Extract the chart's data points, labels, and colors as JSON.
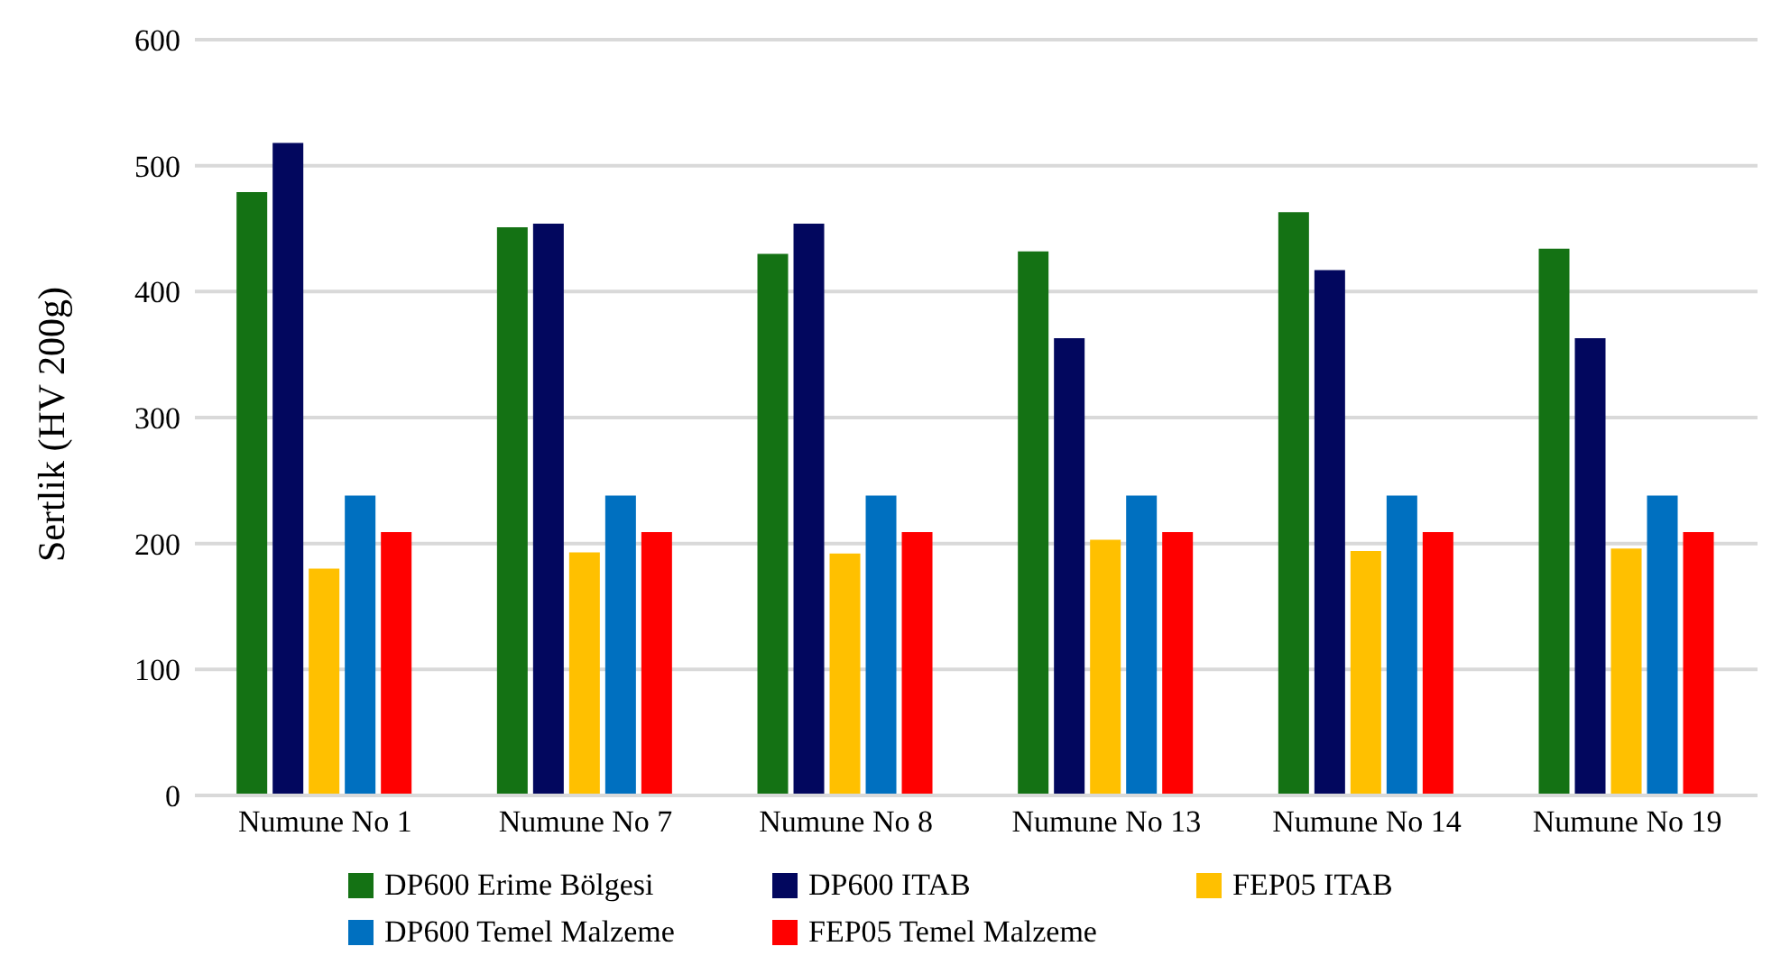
{
  "chart_data": {
    "type": "bar",
    "ylabel": "Sertlik (HV 200g)",
    "categories": [
      "Numune No 1",
      "Numune No 7",
      "Numune No 8",
      "Numune No 13",
      "Numune No 14",
      "Numune No 19"
    ],
    "series": [
      {
        "name": "DP600 Erime Bölgesi",
        "color": "#147214",
        "values": [
          479,
          451,
          430,
          432,
          463,
          434
        ]
      },
      {
        "name": "DP600 ITAB",
        "color": "#02075e",
        "values": [
          518,
          454,
          454,
          363,
          417,
          363
        ]
      },
      {
        "name": "FEP05 ITAB",
        "color": "#ffc000",
        "values": [
          180,
          193,
          192,
          203,
          194,
          196
        ]
      },
      {
        "name": "DP600 Temel Malzeme",
        "color": "#0070c0",
        "values": [
          238,
          238,
          238,
          238,
          238,
          238
        ]
      },
      {
        "name": "FEP05 Temel Malzeme",
        "color": "#ff0000",
        "values": [
          209,
          209,
          209,
          209,
          209,
          209
        ]
      }
    ],
    "ylim": [
      0,
      600
    ],
    "yticks": [
      0,
      100,
      200,
      300,
      400,
      500,
      600
    ],
    "grid": "y",
    "legend": "bottom"
  }
}
